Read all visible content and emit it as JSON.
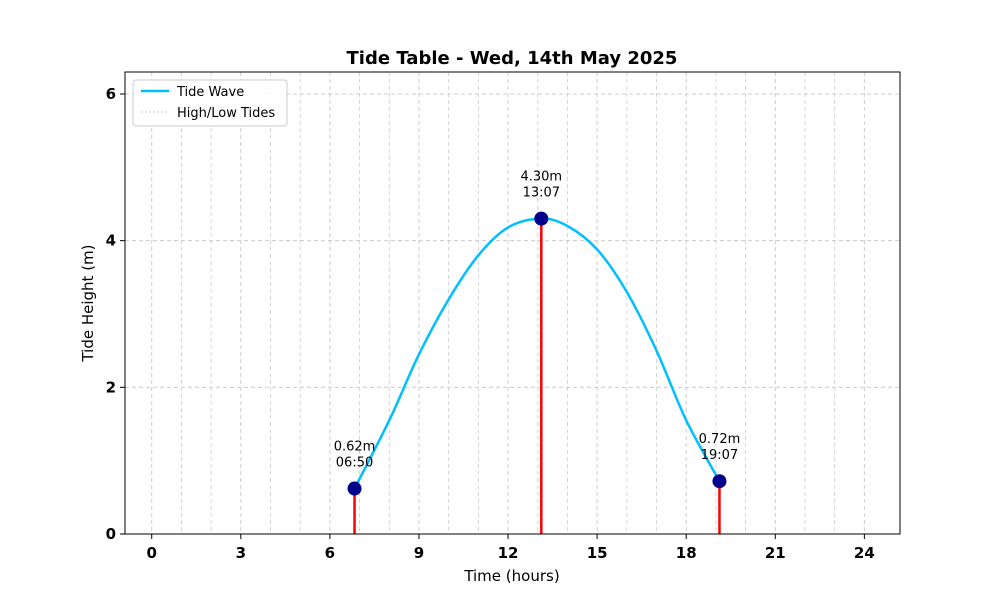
{
  "chart_data": {
    "type": "line",
    "title": "Tide Table - Wed, 14th May 2025",
    "xlabel": "Time (hours)",
    "ylabel": "Tide Height (m)",
    "xlim": [
      -0.9,
      25.2
    ],
    "ylim": [
      0,
      6.3
    ],
    "xticks": [
      0,
      3,
      6,
      9,
      12,
      15,
      18,
      21,
      24
    ],
    "yticks": [
      0,
      2,
      4,
      6
    ],
    "grid": true,
    "legend_position": "top-left",
    "series": [
      {
        "name": "Tide Wave",
        "color": "#00bfff",
        "points": [
          {
            "x": 6.83,
            "y": 0.62
          },
          {
            "x": 8.0,
            "y": 1.55
          },
          {
            "x": 9.0,
            "y": 2.45
          },
          {
            "x": 10.0,
            "y": 3.2
          },
          {
            "x": 11.0,
            "y": 3.8
          },
          {
            "x": 12.0,
            "y": 4.18
          },
          {
            "x": 13.12,
            "y": 4.3
          },
          {
            "x": 14.0,
            "y": 4.2
          },
          {
            "x": 15.0,
            "y": 3.88
          },
          {
            "x": 16.0,
            "y": 3.3
          },
          {
            "x": 17.0,
            "y": 2.5
          },
          {
            "x": 18.0,
            "y": 1.55
          },
          {
            "x": 19.12,
            "y": 0.72
          }
        ]
      },
      {
        "name": "High/Low Tides",
        "color": "#ff0000",
        "style": "stem"
      }
    ],
    "tides": [
      {
        "time": "06:50",
        "hour": 6.83,
        "height": 0.62,
        "label_height": "0.62m"
      },
      {
        "time": "13:07",
        "hour": 13.12,
        "height": 4.3,
        "label_height": "4.30m"
      },
      {
        "time": "19:07",
        "hour": 19.12,
        "height": 0.72,
        "label_height": "0.72m"
      }
    ],
    "colors": {
      "wave": "#00bfff",
      "marker": "#00008b",
      "stem": "#ff0000",
      "grid": "#cccccc"
    }
  }
}
